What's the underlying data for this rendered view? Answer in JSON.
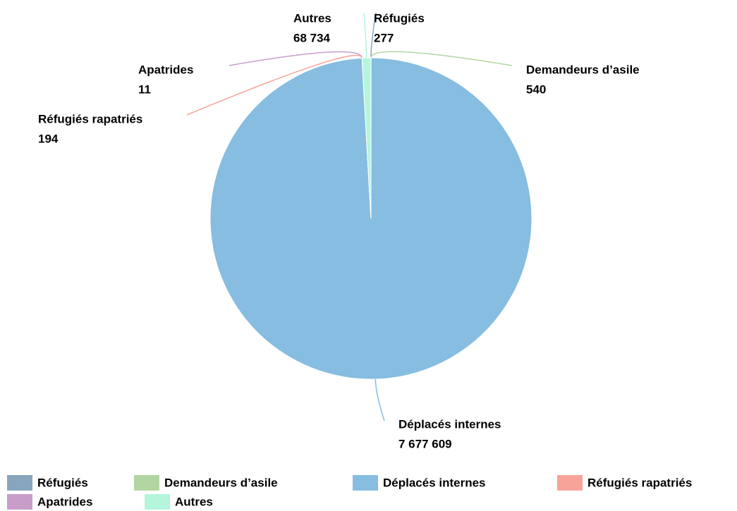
{
  "chart_data": {
    "type": "pie",
    "categories": [
      "Réfugiés",
      "Demandeurs d’asile",
      "Déplacés internes",
      "Réfugiés rapatriés",
      "Apatrides",
      "Autres"
    ],
    "values": [
      277,
      540,
      7677609,
      194,
      11,
      68734
    ],
    "value_labels": [
      "277",
      "540",
      "7 677 609",
      "194",
      "11",
      "68 734"
    ],
    "colors": [
      "#87a6bd",
      "#b2d5a2",
      "#86bde0",
      "#f8a399",
      "#c89dc9",
      "#b4f5dc"
    ],
    "legend": "bottom"
  }
}
